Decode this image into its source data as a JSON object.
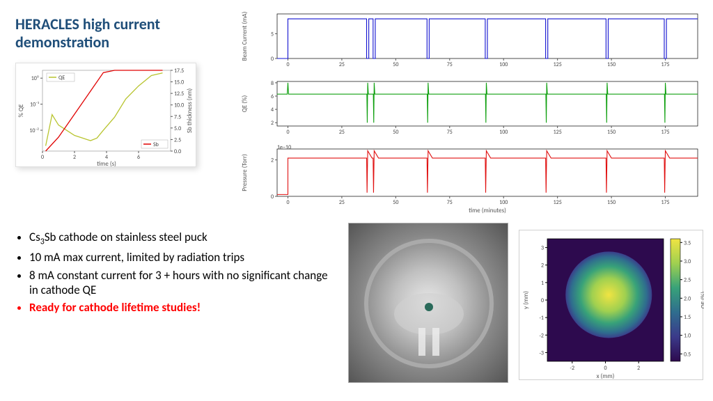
{
  "title": "HERACLES high current demonstration",
  "title_color": "#1f4e79",
  "qe_sb_chart": {
    "type": "line-dual-axis",
    "x_label": "time (s)",
    "y_left_label": "% QE",
    "y_right_label": "Sb thickness (nm)",
    "x_ticks": [
      0,
      2,
      4,
      6
    ],
    "y_left_ticks": [
      "10⁻²",
      "10⁻¹",
      "10⁰"
    ],
    "y_right_ticks": [
      0.0,
      2.5,
      5.0,
      7.5,
      10.0,
      12.5,
      15.0,
      17.5
    ],
    "y_left_scale": "log",
    "series": [
      {
        "name": "QE",
        "color": "#b8c42f",
        "x": [
          0.2,
          0.6,
          1.0,
          1.5,
          2.0,
          2.5,
          3.0,
          3.4,
          3.8,
          4.5,
          5.2,
          6.0,
          6.8,
          7.5
        ],
        "y_log10": [
          -2.6,
          -1.4,
          -1.8,
          -2.0,
          -2.2,
          -2.3,
          -2.4,
          -2.3,
          -2.0,
          -1.5,
          -0.8,
          -0.3,
          0.1,
          0.2
        ]
      },
      {
        "name": "Sb",
        "color": "#e00000",
        "x": [
          0.2,
          1.0,
          2.0,
          3.0,
          3.8,
          4.5,
          7.5
        ],
        "y": [
          0,
          3,
          8,
          13,
          17,
          17.5,
          17.5
        ]
      }
    ],
    "legend_qe": "QE",
    "legend_sb": "Sb",
    "font_size_label": 9,
    "font_size_tick": 8,
    "grid_color": "#e0e0e0",
    "background": "#ffffff"
  },
  "time_series": {
    "x_label": "time (minutes)",
    "x_ticks": [
      0,
      25,
      50,
      75,
      100,
      125,
      150,
      175
    ],
    "xlim": [
      -5,
      190
    ],
    "trip_positions": [
      0,
      37,
      40,
      65,
      92,
      120,
      148,
      175
    ],
    "charts": [
      {
        "id": "beam-current",
        "y_label": "Beam Current (mA)",
        "color": "#1010d0",
        "ylim": [
          0,
          9
        ],
        "y_ticks": [
          0,
          5
        ],
        "baseline": 8,
        "dip_to": 0
      },
      {
        "id": "qe-percent",
        "y_label": "QE (%)",
        "color": "#10a010",
        "ylim": [
          1.5,
          8.2
        ],
        "y_ticks": [
          2,
          4,
          6,
          8
        ],
        "baseline": 6.3,
        "spike_to": 8,
        "spike_down": 2
      },
      {
        "id": "pressure",
        "y_label": "Pressure (Torr)",
        "color": "#e01010",
        "exponent_label": "1e−10",
        "ylim": [
          0,
          2.6
        ],
        "y_ticks": [
          0,
          2
        ],
        "baseline": 2.1,
        "dip_to": 0.2,
        "spike_to": 2.5
      }
    ],
    "font_size_label": 9,
    "font_size_tick": 8,
    "border_color": "#000000",
    "background": "#ffffff"
  },
  "bullets": [
    {
      "text_html": "Cs<sub>3</sub>Sb cathode on stainless steel puck",
      "red": false
    },
    {
      "text_html": "10 mA max current, limited by radiation trips",
      "red": false
    },
    {
      "text_html": "8 mA constant current for 3 + hours with no significant change in cathode QE",
      "red": false
    },
    {
      "text_html": "Ready for cathode lifetime studies!",
      "red": true
    }
  ],
  "photo": {
    "description": "stainless-steel-cathode-chamber",
    "bg_center": "#e8e8e8",
    "bg_outer": "#555555"
  },
  "heatmap": {
    "type": "heatmap",
    "x_label": "x (mm)",
    "y_label": "y (mm)",
    "cbar_label": "QE (%)",
    "x_ticks": [
      -2,
      0,
      2
    ],
    "y_ticks": [
      -3,
      -2,
      -1,
      0,
      1,
      2,
      3
    ],
    "cbar_ticks": [
      0.5,
      1.0,
      1.5,
      2.0,
      2.5,
      3.0,
      3.5
    ],
    "xlim": [
      -3.5,
      3.5
    ],
    "ylim": [
      -3.5,
      3.5
    ],
    "spot_center": [
      0.2,
      0.3
    ],
    "spot_radius": 2.6,
    "max_qe": 3.5,
    "bg_color": "#2d0a4e",
    "spot_colors": [
      "#2d0a4e",
      "#3b3a8a",
      "#2f6d8e",
      "#38a279",
      "#a0d050",
      "#f0e442"
    ],
    "font_size_label": 9,
    "font_size_tick": 8
  }
}
